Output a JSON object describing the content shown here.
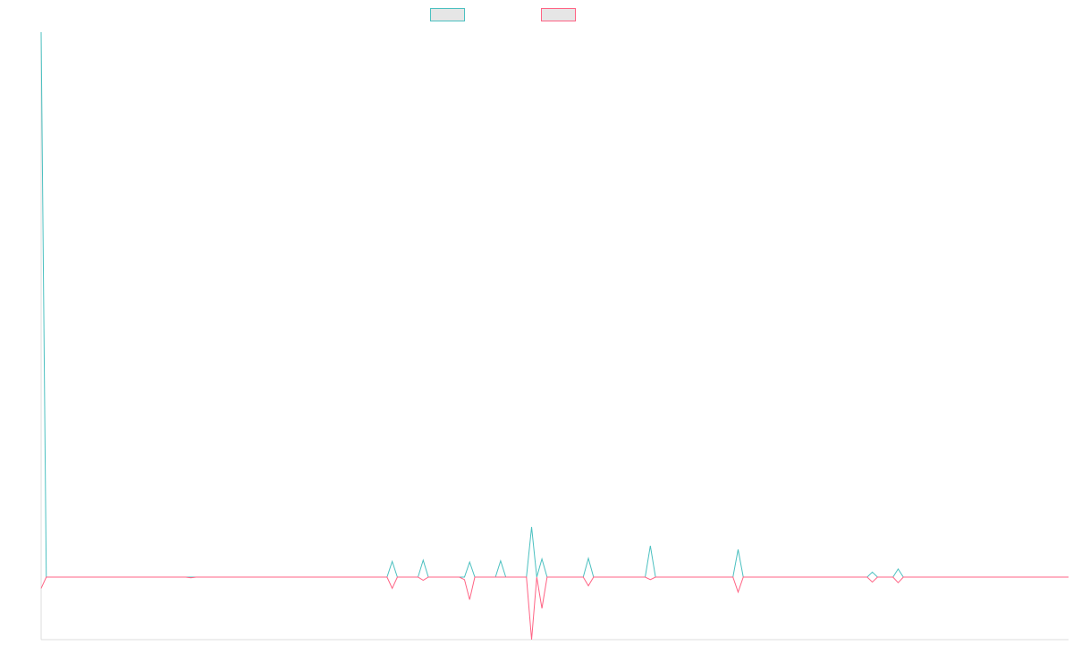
{
  "chart_data": {
    "type": "line",
    "title": "",
    "xlabel": "",
    "ylabel": "",
    "x_count": 200,
    "ylim": [
      -10,
      87
    ],
    "grid": false,
    "legend_placement": "top-center",
    "series": [
      {
        "legend_label": "",
        "color": "#4bc0c0",
        "points": [
          [
            0,
            87
          ],
          [
            1,
            0
          ],
          [
            67,
            0
          ],
          [
            68,
            2.5
          ],
          [
            69,
            0
          ],
          [
            73,
            0
          ],
          [
            74,
            2.7
          ],
          [
            75,
            0
          ],
          [
            82,
            0
          ],
          [
            83,
            2.4
          ],
          [
            84,
            0
          ],
          [
            88,
            0
          ],
          [
            89,
            2.6
          ],
          [
            90,
            0
          ],
          [
            94,
            0
          ],
          [
            95,
            8
          ],
          [
            96,
            0
          ],
          [
            97,
            2.9
          ],
          [
            98,
            0
          ],
          [
            105,
            0
          ],
          [
            106,
            3.0
          ],
          [
            107,
            0
          ],
          [
            117,
            0
          ],
          [
            118,
            5.0
          ],
          [
            119,
            0
          ],
          [
            134,
            0
          ],
          [
            135,
            4.4
          ],
          [
            136,
            0
          ],
          [
            160,
            0
          ],
          [
            161,
            0.8
          ],
          [
            162,
            0
          ],
          [
            165,
            0
          ],
          [
            166,
            1.3
          ],
          [
            167,
            0
          ],
          [
            199,
            0
          ]
        ]
      },
      {
        "legend_label": "",
        "color": "#ff6384",
        "points": [
          [
            0,
            -1.8
          ],
          [
            1,
            0
          ],
          [
            28,
            0
          ],
          [
            29,
            -0.1
          ],
          [
            30,
            0
          ],
          [
            67,
            0
          ],
          [
            68,
            -1.8
          ],
          [
            69,
            0
          ],
          [
            73,
            0
          ],
          [
            74,
            -0.5
          ],
          [
            75,
            0
          ],
          [
            81,
            0
          ],
          [
            82,
            -0.4
          ],
          [
            83,
            -3.6
          ],
          [
            84,
            0
          ],
          [
            94,
            0
          ],
          [
            95,
            -10
          ],
          [
            96,
            0
          ],
          [
            97,
            -5.0
          ],
          [
            98,
            0
          ],
          [
            105,
            0
          ],
          [
            106,
            -1.4
          ],
          [
            107,
            0
          ],
          [
            117,
            0
          ],
          [
            118,
            -0.4
          ],
          [
            119,
            0
          ],
          [
            134,
            0
          ],
          [
            135,
            -2.4
          ],
          [
            136,
            0
          ],
          [
            160,
            0
          ],
          [
            161,
            -0.8
          ],
          [
            162,
            0
          ],
          [
            165,
            0
          ],
          [
            166,
            -0.9
          ],
          [
            167,
            0
          ],
          [
            199,
            0
          ]
        ]
      }
    ]
  }
}
